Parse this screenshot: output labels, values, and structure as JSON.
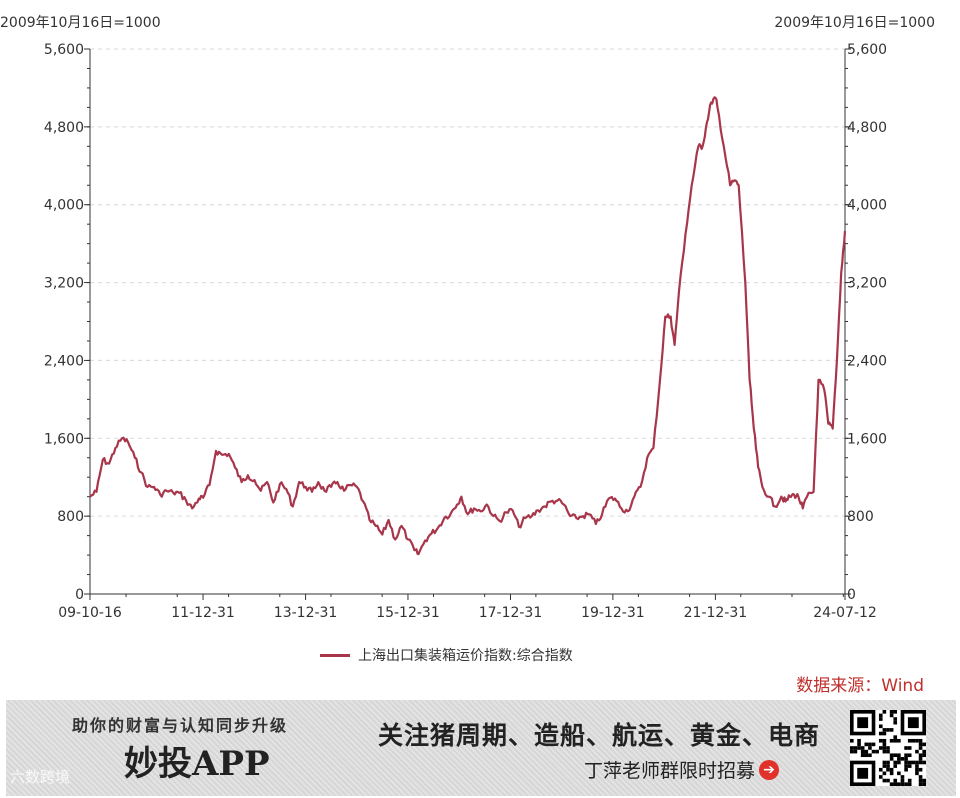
{
  "chart_data": {
    "type": "line",
    "left_unit": "2009年10月16日=1000",
    "right_unit": "2009年10月16日=1000",
    "y_ticks": [
      "0",
      "800",
      "1,600",
      "2,400",
      "3,200",
      "4,000",
      "4,800",
      "5,600"
    ],
    "ylim": [
      0,
      5600
    ],
    "grid": "horizontal dashed",
    "x_ticks": [
      "09-10-16",
      "11-12-31",
      "13-12-31",
      "15-12-31",
      "17-12-31",
      "19-12-31",
      "21-12-31",
      "24-07-12"
    ],
    "x_tick_dates": [
      "2009-10-16",
      "2011-12-31",
      "2013-12-31",
      "2015-12-31",
      "2017-12-31",
      "2019-12-31",
      "2021-12-31",
      "2024-07-12"
    ],
    "xlim": [
      "2009-10-16",
      "2024-07-12"
    ],
    "series": [
      {
        "name": "上海出口集装箱运价指数:综合指数",
        "color": "#a8364b",
        "points": [
          [
            "2009-10-16",
            1000
          ],
          [
            "2009-12-01",
            1050
          ],
          [
            "2010-01-15",
            1380
          ],
          [
            "2010-03-01",
            1340
          ],
          [
            "2010-04-15",
            1500
          ],
          [
            "2010-06-01",
            1600
          ],
          [
            "2010-07-15",
            1560
          ],
          [
            "2010-09-01",
            1400
          ],
          [
            "2010-10-15",
            1250
          ],
          [
            "2010-12-01",
            1100
          ],
          [
            "2011-01-15",
            1100
          ],
          [
            "2011-03-01",
            1020
          ],
          [
            "2011-04-15",
            1060
          ],
          [
            "2011-06-01",
            1040
          ],
          [
            "2011-07-15",
            1040
          ],
          [
            "2011-09-01",
            960
          ],
          [
            "2011-10-15",
            880
          ],
          [
            "2011-12-01",
            980
          ],
          [
            "2012-01-01",
            990
          ],
          [
            "2012-02-15",
            1120
          ],
          [
            "2012-04-01",
            1470
          ],
          [
            "2012-05-15",
            1430
          ],
          [
            "2012-07-01",
            1440
          ],
          [
            "2012-08-15",
            1300
          ],
          [
            "2012-10-01",
            1150
          ],
          [
            "2012-11-15",
            1220
          ],
          [
            "2013-01-01",
            1170
          ],
          [
            "2013-02-15",
            1060
          ],
          [
            "2013-04-01",
            1150
          ],
          [
            "2013-05-15",
            940
          ],
          [
            "2013-07-01",
            1130
          ],
          [
            "2013-08-15",
            1080
          ],
          [
            "2013-10-01",
            900
          ],
          [
            "2013-11-15",
            1150
          ],
          [
            "2014-01-01",
            1100
          ],
          [
            "2014-02-15",
            1050
          ],
          [
            "2014-04-01",
            1150
          ],
          [
            "2014-05-15",
            1060
          ],
          [
            "2014-07-01",
            1100
          ],
          [
            "2014-08-15",
            1150
          ],
          [
            "2014-10-01",
            1060
          ],
          [
            "2014-11-15",
            1120
          ],
          [
            "2015-01-01",
            1100
          ],
          [
            "2015-02-15",
            950
          ],
          [
            "2015-04-01",
            760
          ],
          [
            "2015-05-15",
            700
          ],
          [
            "2015-07-01",
            610
          ],
          [
            "2015-08-15",
            760
          ],
          [
            "2015-10-01",
            560
          ],
          [
            "2015-11-15",
            700
          ],
          [
            "2016-01-01",
            560
          ],
          [
            "2016-02-15",
            450
          ],
          [
            "2016-03-15",
            410
          ],
          [
            "2016-05-01",
            550
          ],
          [
            "2016-06-15",
            620
          ],
          [
            "2016-08-01",
            680
          ],
          [
            "2016-09-15",
            780
          ],
          [
            "2016-11-01",
            830
          ],
          [
            "2016-12-15",
            920
          ],
          [
            "2017-01-15",
            1000
          ],
          [
            "2017-03-01",
            820
          ],
          [
            "2017-04-15",
            880
          ],
          [
            "2017-06-01",
            850
          ],
          [
            "2017-07-15",
            920
          ],
          [
            "2017-09-01",
            800
          ],
          [
            "2017-10-15",
            750
          ],
          [
            "2017-12-01",
            840
          ],
          [
            "2018-01-15",
            860
          ],
          [
            "2018-03-01",
            690
          ],
          [
            "2018-04-15",
            780
          ],
          [
            "2018-06-01",
            800
          ],
          [
            "2018-07-15",
            860
          ],
          [
            "2018-09-01",
            900
          ],
          [
            "2018-10-15",
            950
          ],
          [
            "2018-12-01",
            960
          ],
          [
            "2019-01-15",
            920
          ],
          [
            "2019-03-01",
            800
          ],
          [
            "2019-04-15",
            780
          ],
          [
            "2019-06-01",
            800
          ],
          [
            "2019-07-15",
            820
          ],
          [
            "2019-09-01",
            720
          ],
          [
            "2019-10-15",
            820
          ],
          [
            "2019-12-01",
            980
          ],
          [
            "2020-01-15",
            980
          ],
          [
            "2020-03-01",
            880
          ],
          [
            "2020-04-15",
            850
          ],
          [
            "2020-06-01",
            1000
          ],
          [
            "2020-07-15",
            1100
          ],
          [
            "2020-09-01",
            1400
          ],
          [
            "2020-10-15",
            1500
          ],
          [
            "2020-12-01",
            2200
          ],
          [
            "2021-01-08",
            2850
          ],
          [
            "2021-02-15",
            2850
          ],
          [
            "2021-03-15",
            2560
          ],
          [
            "2021-04-15",
            3100
          ],
          [
            "2021-06-01",
            3700
          ],
          [
            "2021-07-15",
            4200
          ],
          [
            "2021-09-01",
            4600
          ],
          [
            "2021-10-01",
            4600
          ],
          [
            "2021-11-01",
            4850
          ],
          [
            "2021-12-01",
            5050
          ],
          [
            "2021-12-31",
            5100
          ],
          [
            "2022-01-15",
            5000
          ],
          [
            "2022-03-01",
            4600
          ],
          [
            "2022-04-15",
            4200
          ],
          [
            "2022-05-15",
            4250
          ],
          [
            "2022-06-15",
            4200
          ],
          [
            "2022-08-01",
            3200
          ],
          [
            "2022-09-01",
            2200
          ],
          [
            "2022-10-01",
            1700
          ],
          [
            "2022-11-01",
            1300
          ],
          [
            "2022-12-01",
            1100
          ],
          [
            "2023-01-15",
            1000
          ],
          [
            "2023-03-01",
            900
          ],
          [
            "2023-04-15",
            1000
          ],
          [
            "2023-05-15",
            950
          ],
          [
            "2023-06-15",
            1000
          ],
          [
            "2023-07-15",
            1020
          ],
          [
            "2023-08-15",
            1000
          ],
          [
            "2023-09-15",
            880
          ],
          [
            "2023-10-15",
            1000
          ],
          [
            "2023-12-01",
            1050
          ],
          [
            "2024-01-05",
            2200
          ],
          [
            "2024-02-15",
            2100
          ],
          [
            "2024-03-15",
            1750
          ],
          [
            "2024-04-15",
            1700
          ],
          [
            "2024-05-15",
            2400
          ],
          [
            "2024-06-15",
            3300
          ],
          [
            "2024-07-12",
            3730
          ]
        ]
      }
    ]
  },
  "source_label": "数据来源：Wind",
  "banner": {
    "slogan": "助你的财富与认知同步升级",
    "app_name": "妙投APP",
    "focus_text": "关注猪周期、造船、航运、黄金、电商",
    "recruit_text": "丁萍老师群限时招募",
    "watermark": "六数跨境"
  }
}
